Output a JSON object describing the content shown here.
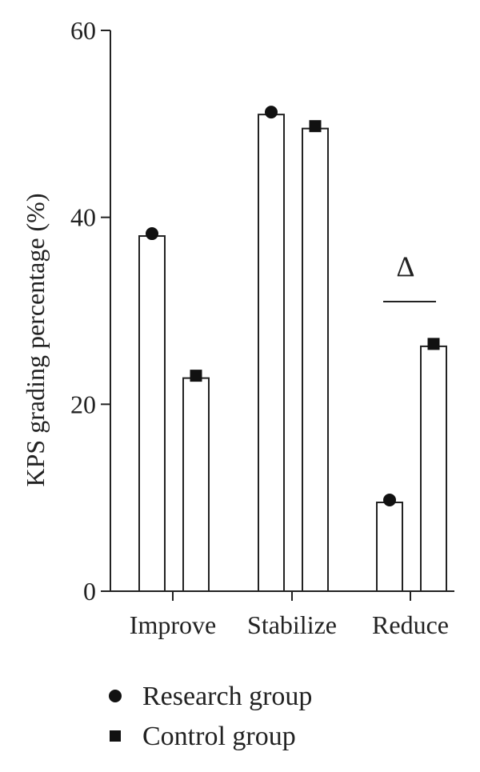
{
  "chart_data": {
    "type": "bar",
    "categories": [
      "Improve",
      "Stabilize",
      "Reduce"
    ],
    "series": [
      {
        "name": "Research group",
        "values": [
          38.0,
          51.0,
          9.5
        ],
        "marker": "circle"
      },
      {
        "name": "Control group",
        "values": [
          22.8,
          49.5,
          26.2
        ],
        "marker": "square"
      }
    ],
    "ylabel": "KPS grading percentage (%)",
    "ylim": [
      0,
      60
    ],
    "yticks": [
      0,
      20,
      40,
      60
    ],
    "grid": false,
    "legend_position": "bottom",
    "annotations": [
      {
        "text": "Δ",
        "category": "Reduce",
        "type": "significance"
      }
    ],
    "colors": {
      "bar_fill": "#ffffff",
      "bar_stroke": "#222222",
      "marker": "#111111"
    }
  }
}
